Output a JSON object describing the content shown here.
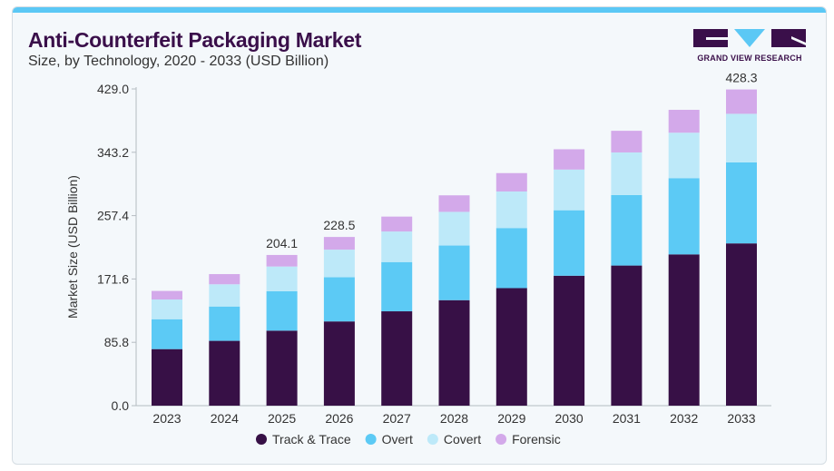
{
  "header": {
    "title": "Anti-Counterfeit Packaging Market",
    "subtitle": "Size, by Technology, 2020 - 2033 (USD Billion)",
    "logo_text": "GRAND VIEW RESEARCH"
  },
  "chart_data": {
    "type": "bar",
    "stacked": true,
    "title": "Anti-Counterfeit Packaging Market",
    "subtitle": "Size, by Technology, 2020 - 2033 (USD Billion)",
    "xlabel": "",
    "ylabel": "Market Size (USD Billion)",
    "ylim": [
      0,
      429.0
    ],
    "yticks": [
      "0.0",
      "85.8",
      "171.6",
      "257.4",
      "343.2",
      "429.0"
    ],
    "grid": false,
    "legend_position": "bottom",
    "categories": [
      "2023",
      "2024",
      "2025",
      "2026",
      "2027",
      "2028",
      "2029",
      "2030",
      "2031",
      "2032",
      "2033"
    ],
    "series": [
      {
        "name": "Track & Trace",
        "color": "#371046",
        "values": [
          76.6,
          87.8,
          101.6,
          114.1,
          127.8,
          142.9,
          159.2,
          176.0,
          189.8,
          204.9,
          219.8
        ]
      },
      {
        "name": "Overt",
        "color": "#5ccaf5",
        "values": [
          40.5,
          46.5,
          53.3,
          59.8,
          66.7,
          74.0,
          81.4,
          88.7,
          95.5,
          103.3,
          109.8
        ]
      },
      {
        "name": "Covert",
        "color": "#bde9f9",
        "values": [
          26.7,
          30.1,
          33.6,
          37.4,
          41.4,
          45.6,
          49.5,
          55.1,
          57.7,
          61.5,
          65.7
        ]
      },
      {
        "name": "Forensic",
        "color": "#d3a9ea",
        "values": [
          11.6,
          13.8,
          15.6,
          17.2,
          20.2,
          22.4,
          24.9,
          27.5,
          29.3,
          31.0,
          33.0
        ]
      }
    ],
    "data_labels": [
      {
        "category": "2025",
        "text": "204.1"
      },
      {
        "category": "2026",
        "text": "228.5"
      },
      {
        "category": "2033",
        "text": "428.3"
      }
    ]
  },
  "colors": {
    "accent": "#5bc8f5",
    "title": "#3a0f4a"
  }
}
